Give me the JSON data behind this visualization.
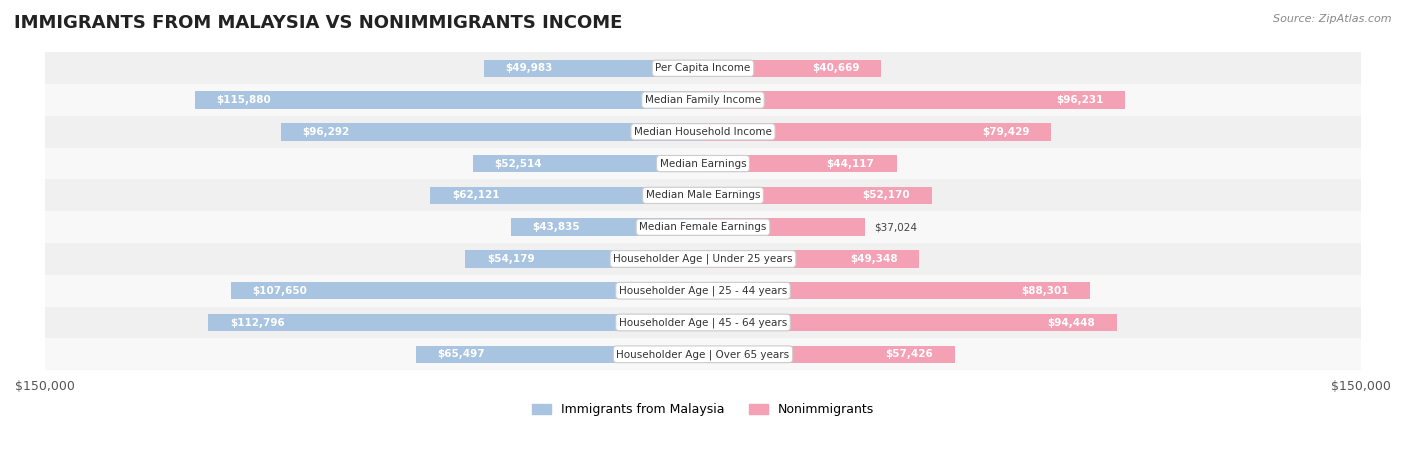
{
  "title": "IMMIGRANTS FROM MALAYSIA VS NONIMMIGRANTS INCOME",
  "source": "Source: ZipAtlas.com",
  "categories": [
    "Per Capita Income",
    "Median Family Income",
    "Median Household Income",
    "Median Earnings",
    "Median Male Earnings",
    "Median Female Earnings",
    "Householder Age | Under 25 years",
    "Householder Age | 25 - 44 years",
    "Householder Age | 45 - 64 years",
    "Householder Age | Over 65 years"
  ],
  "immigrants": [
    49983,
    115880,
    96292,
    52514,
    62121,
    43835,
    54179,
    107650,
    112796,
    65497
  ],
  "nonimmigrants": [
    40669,
    96231,
    79429,
    44117,
    52170,
    37024,
    49348,
    88301,
    94448,
    57426
  ],
  "max_val": 150000,
  "immigrant_color": "#a8c4e0",
  "nonimmigrant_color": "#f4a0b5",
  "immigrant_color_dark": "#7bafd4",
  "nonimmigrant_color_dark": "#f07090",
  "label_color_light": "#555555",
  "label_color_dark_imm": "#ffffff",
  "label_color_dark_non": "#ffffff",
  "row_bg_odd": "#f0f0f0",
  "row_bg_even": "#f8f8f8",
  "bar_height": 0.55,
  "legend_imm": "Immigrants from Malaysia",
  "legend_non": "Nonimmigrants"
}
